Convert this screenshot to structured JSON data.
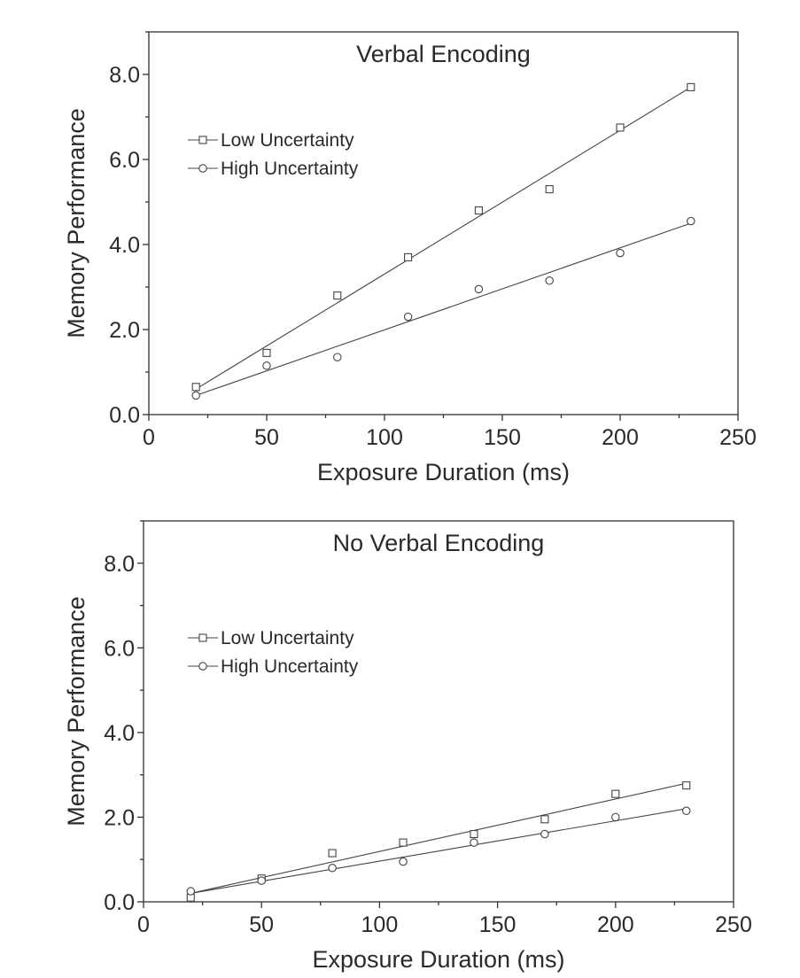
{
  "chart_data": [
    {
      "type": "scatter",
      "title": "Verbal Encoding",
      "xlabel": "Exposure Duration (ms)",
      "ylabel": "Memory Performance",
      "xlim": [
        0,
        250
      ],
      "ylim": [
        0,
        9
      ],
      "xticks": [
        0,
        50,
        100,
        150,
        200,
        250
      ],
      "xtick_labels": [
        "0",
        "50",
        "100",
        "150",
        "200",
        "250"
      ],
      "yticks": [
        0,
        2,
        4,
        6,
        8
      ],
      "ytick_labels": [
        "0.0",
        "2.0",
        "4.0",
        "6.0",
        "8.0"
      ],
      "legend_position": "upper-left",
      "series": [
        {
          "name": "Low Uncertainty",
          "marker": "square",
          "x": [
            20,
            50,
            80,
            110,
            140,
            170,
            200,
            230
          ],
          "y": [
            0.65,
            1.45,
            2.8,
            3.7,
            4.8,
            5.3,
            6.75,
            7.7
          ],
          "fit_line": [
            [
              20,
              0.6
            ],
            [
              230,
              7.7
            ]
          ]
        },
        {
          "name": "High Uncertainty",
          "marker": "circle",
          "x": [
            20,
            50,
            80,
            110,
            140,
            170,
            200,
            230
          ],
          "y": [
            0.45,
            1.15,
            1.35,
            2.3,
            2.95,
            3.15,
            3.8,
            4.55
          ],
          "fit_line": [
            [
              20,
              0.45
            ],
            [
              230,
              4.5
            ]
          ]
        }
      ]
    },
    {
      "type": "scatter",
      "title": "No Verbal Encoding",
      "xlabel": "Exposure Duration (ms)",
      "ylabel": "Memory Performance",
      "xlim": [
        0,
        250
      ],
      "ylim": [
        0,
        9
      ],
      "xticks": [
        0,
        50,
        100,
        150,
        200,
        250
      ],
      "xtick_labels": [
        "0",
        "50",
        "100",
        "150",
        "200",
        "250"
      ],
      "yticks": [
        0,
        2,
        4,
        6,
        8
      ],
      "ytick_labels": [
        "0.0",
        "2.0",
        "4.0",
        "6.0",
        "8.0"
      ],
      "legend_position": "upper-left",
      "series": [
        {
          "name": "Low Uncertainty",
          "marker": "square",
          "x": [
            20,
            50,
            80,
            110,
            140,
            170,
            200,
            230
          ],
          "y": [
            0.1,
            0.55,
            1.15,
            1.4,
            1.6,
            1.95,
            2.55,
            2.75
          ],
          "fit_line": [
            [
              20,
              0.2
            ],
            [
              230,
              2.8
            ]
          ]
        },
        {
          "name": "High Uncertainty",
          "marker": "circle",
          "x": [
            20,
            50,
            80,
            110,
            140,
            170,
            200,
            230
          ],
          "y": [
            0.25,
            0.5,
            0.8,
            0.95,
            1.4,
            1.6,
            2.0,
            2.15
          ],
          "fit_line": [
            [
              20,
              0.2
            ],
            [
              230,
              2.2
            ]
          ]
        }
      ]
    }
  ]
}
